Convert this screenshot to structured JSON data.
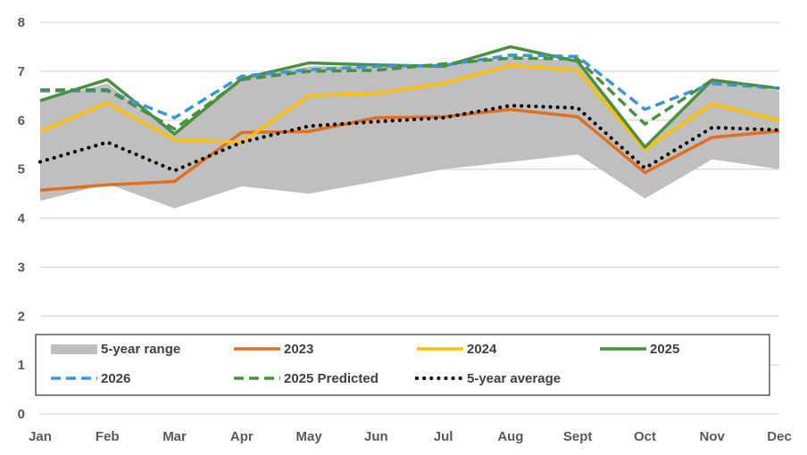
{
  "chart_data": {
    "type": "line",
    "title": "",
    "xlabel": "",
    "ylabel": "",
    "ylim": [
      0,
      8
    ],
    "yticks": [
      0,
      1,
      2,
      3,
      4,
      5,
      6,
      7,
      8
    ],
    "grid": true,
    "legend_placement": "bottom-inside",
    "categories": [
      "Jan",
      "Feb",
      "Mar",
      "Apr",
      "May",
      "Jun",
      "Jul",
      "Aug",
      "Sept",
      "Oct",
      "Nov",
      "Dec"
    ],
    "range": {
      "name": "5-year range",
      "color": "#bfbfbf",
      "low": [
        4.35,
        4.7,
        4.2,
        4.65,
        4.5,
        4.75,
        5.0,
        5.15,
        5.3,
        4.4,
        5.2,
        5.0
      ],
      "high": [
        6.4,
        6.75,
        5.7,
        6.85,
        7.1,
        7.1,
        7.1,
        7.3,
        7.2,
        5.4,
        6.8,
        6.6
      ]
    },
    "series": [
      {
        "name": "2023",
        "color": "#e07020",
        "style": "solid",
        "values": [
          4.57,
          4.68,
          4.75,
          5.75,
          5.77,
          6.05,
          6.07,
          6.22,
          6.07,
          4.93,
          5.65,
          5.78
        ]
      },
      {
        "name": "2024",
        "color": "#ffc000",
        "style": "solid",
        "values": [
          5.77,
          6.35,
          5.6,
          5.55,
          6.5,
          6.55,
          6.75,
          7.12,
          7.02,
          5.4,
          6.33,
          6.0
        ]
      },
      {
        "name": "2025",
        "color": "#4a9040",
        "style": "solid",
        "values": [
          6.4,
          6.83,
          5.72,
          6.85,
          7.17,
          7.13,
          7.1,
          7.5,
          7.2,
          5.45,
          6.82,
          6.65
        ]
      },
      {
        "name": "2026",
        "color": "#3a96dc",
        "style": "dashed",
        "values": [
          6.6,
          6.6,
          6.05,
          6.9,
          7.03,
          7.1,
          7.12,
          7.33,
          7.3,
          6.22,
          6.75,
          6.65
        ]
      },
      {
        "name": "2025 Predicted",
        "color": "#4a9040",
        "style": "dashed",
        "values": [
          6.62,
          6.62,
          5.82,
          6.83,
          7.0,
          7.02,
          7.15,
          7.27,
          7.25,
          5.92,
          6.82,
          6.65
        ]
      },
      {
        "name": "5-year average",
        "color": "#000000",
        "style": "dotted",
        "values": [
          5.15,
          5.55,
          4.97,
          5.55,
          5.88,
          5.97,
          6.05,
          6.3,
          6.25,
          5.02,
          5.85,
          5.8
        ]
      }
    ]
  }
}
